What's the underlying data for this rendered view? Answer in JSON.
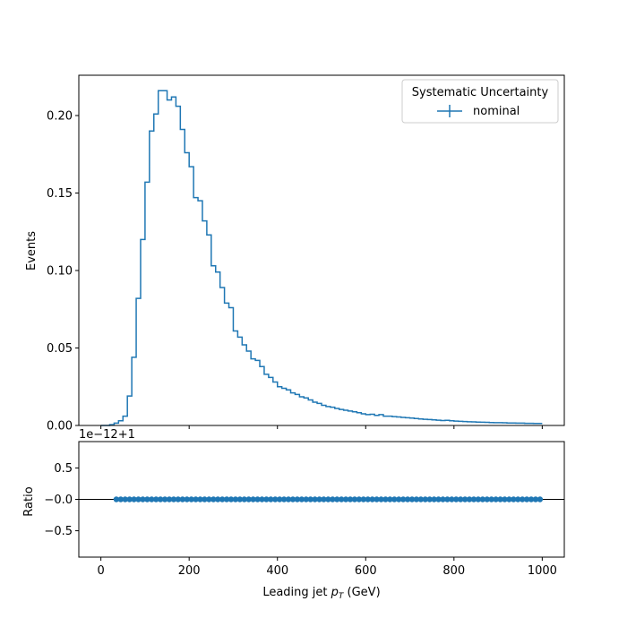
{
  "chart_data": [
    {
      "type": "line",
      "style": "step",
      "panel": "main",
      "xlabel": "Leading jet  p_T (GeV)",
      "ylabel": "Events",
      "xlim": [
        -50,
        1050
      ],
      "ylim": [
        0,
        0.226
      ],
      "x_ticks": [
        0,
        200,
        400,
        600,
        800,
        1000
      ],
      "y_ticks": [
        0.0,
        0.05,
        0.1,
        0.15,
        0.2
      ],
      "y_tick_labels": [
        "0.00",
        "0.05",
        "0.10",
        "0.15",
        "0.20"
      ],
      "legend": {
        "title": "Systematic Uncertainty",
        "position": "upper right",
        "entries": [
          "nominal"
        ]
      },
      "grid": false,
      "bin_edges": [
        0,
        10,
        20,
        30,
        40,
        50,
        60,
        70,
        80,
        90,
        100,
        110,
        120,
        130,
        140,
        150,
        160,
        170,
        180,
        190,
        200,
        210,
        220,
        230,
        240,
        250,
        260,
        270,
        280,
        290,
        300,
        310,
        320,
        330,
        340,
        350,
        360,
        370,
        380,
        390,
        400,
        410,
        420,
        430,
        440,
        450,
        460,
        470,
        480,
        490,
        500,
        510,
        520,
        530,
        540,
        550,
        560,
        570,
        580,
        590,
        600,
        610,
        620,
        630,
        640,
        650,
        660,
        670,
        680,
        690,
        700,
        710,
        720,
        730,
        740,
        750,
        760,
        770,
        780,
        790,
        800,
        810,
        820,
        830,
        840,
        850,
        860,
        870,
        880,
        890,
        900,
        910,
        920,
        930,
        940,
        950,
        960,
        970,
        980,
        990,
        1000
      ],
      "series": [
        {
          "name": "nominal",
          "color": "#1f77b4",
          "values": [
            0.0,
            0.0,
            0.0005,
            0.0015,
            0.003,
            0.006,
            0.019,
            0.044,
            0.082,
            0.12,
            0.157,
            0.19,
            0.201,
            0.216,
            0.216,
            0.21,
            0.212,
            0.206,
            0.191,
            0.176,
            0.167,
            0.147,
            0.145,
            0.132,
            0.123,
            0.103,
            0.099,
            0.089,
            0.079,
            0.076,
            0.061,
            0.057,
            0.052,
            0.048,
            0.043,
            0.042,
            0.038,
            0.033,
            0.031,
            0.028,
            0.025,
            0.024,
            0.023,
            0.021,
            0.02,
            0.0185,
            0.0178,
            0.0165,
            0.015,
            0.0142,
            0.013,
            0.0122,
            0.0118,
            0.011,
            0.0103,
            0.0098,
            0.0093,
            0.0088,
            0.0082,
            0.0075,
            0.007,
            0.0072,
            0.0065,
            0.007,
            0.006,
            0.006,
            0.0057,
            0.0055,
            0.0052,
            0.005,
            0.0048,
            0.0045,
            0.0042,
            0.004,
            0.0038,
            0.0036,
            0.0034,
            0.0032,
            0.0033,
            0.003,
            0.0028,
            0.0027,
            0.0025,
            0.0024,
            0.0023,
            0.0022,
            0.0021,
            0.002,
            0.0019,
            0.0018,
            0.0018,
            0.0017,
            0.0016,
            0.0016,
            0.0015,
            0.0015,
            0.0014,
            0.0014,
            0.0013,
            0.0013
          ]
        }
      ]
    },
    {
      "type": "scatter",
      "panel": "ratio",
      "xlabel": "Leading jet  p_T (GeV)",
      "ylabel": "Ratio",
      "offset_text": "1e−12+1",
      "xlim": [
        -50,
        1050
      ],
      "ylim": [
        -0.92,
        0.92
      ],
      "reference_line": 0.0,
      "x_ticks": [
        0,
        200,
        400,
        600,
        800,
        1000
      ],
      "y_ticks": [
        0.5,
        0.0,
        -0.5
      ],
      "y_tick_labels": [
        "0.5",
        "−0.0",
        "−0.5"
      ],
      "x": [
        35,
        45,
        55,
        65,
        75,
        85,
        95,
        105,
        115,
        125,
        135,
        145,
        155,
        165,
        175,
        185,
        195,
        205,
        215,
        225,
        235,
        245,
        255,
        265,
        275,
        285,
        295,
        305,
        315,
        325,
        335,
        345,
        355,
        365,
        375,
        385,
        395,
        405,
        415,
        425,
        435,
        445,
        455,
        465,
        475,
        485,
        495,
        505,
        515,
        525,
        535,
        545,
        555,
        565,
        575,
        585,
        595,
        605,
        615,
        625,
        635,
        645,
        655,
        665,
        675,
        685,
        695,
        705,
        715,
        725,
        735,
        745,
        755,
        765,
        775,
        785,
        795,
        805,
        815,
        825,
        835,
        845,
        855,
        865,
        875,
        885,
        895,
        905,
        915,
        925,
        935,
        945,
        955,
        965,
        975,
        985,
        995
      ],
      "y_value": 0.0,
      "color": "#1f77b4"
    }
  ]
}
